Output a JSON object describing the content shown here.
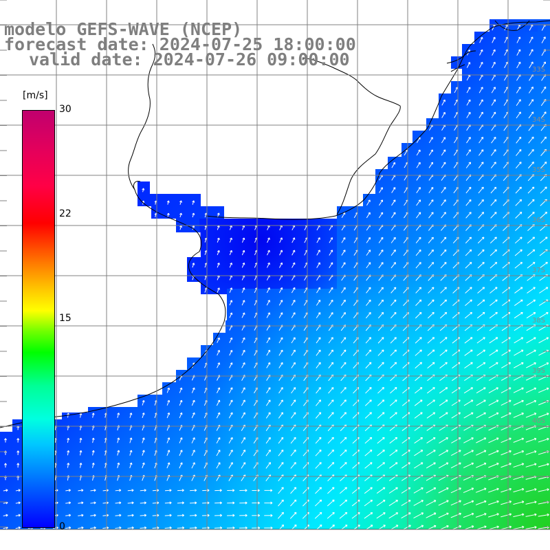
{
  "title": {
    "line1": "modelo GEFS-WAVE (NCEP)",
    "line2": "forecast date: 2024-07-25 18:00:00",
    "line3": "valid date: 2024-07-26 09:00:00"
  },
  "colorbar": {
    "unit": "[m/s]",
    "tick_labels": [
      "30",
      "22",
      "15",
      "0"
    ],
    "min": 0,
    "max": 30,
    "colors": {
      "low": "#0000ff",
      "mid_low": "#00ffff",
      "mid": "#00ff00",
      "mid_high": "#ffff00",
      "high": "#ff0000",
      "top": "#c0006e"
    }
  },
  "map": {
    "land_color": "#ffffff",
    "coastline_color": "#000000",
    "grid_color": "#808080",
    "arrow_color": "#ffffff",
    "lat_labels": [
      "33S",
      "34S",
      "35S",
      "36S",
      "37S",
      "38S",
      "39S",
      "40S"
    ]
  }
}
